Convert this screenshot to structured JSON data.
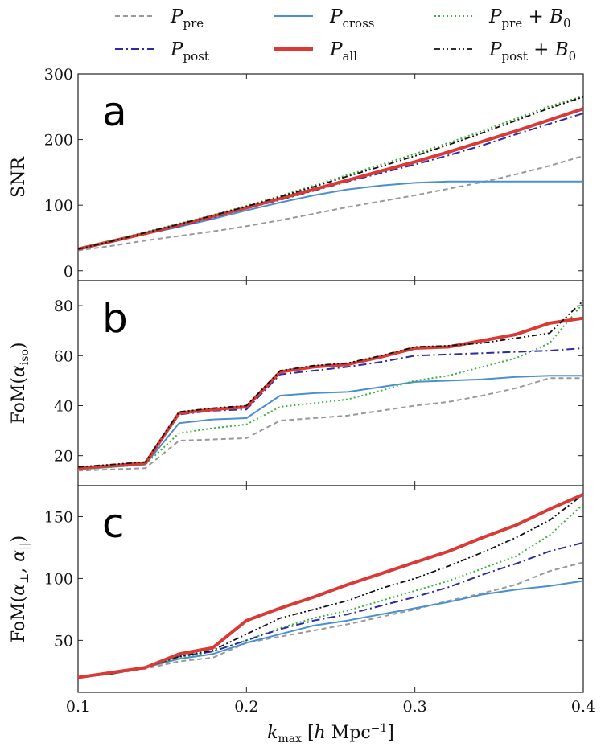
{
  "legend": [
    {
      "id": "pre",
      "main": "P",
      "sub": "pre",
      "suffix": ""
    },
    {
      "id": "cross",
      "main": "P",
      "sub": "cross",
      "suffix": ""
    },
    {
      "id": "preB0",
      "main": "P",
      "sub": "pre",
      "suffix": " + B",
      "suffix_sub": "0"
    },
    {
      "id": "post",
      "main": "P",
      "sub": "post",
      "suffix": ""
    },
    {
      "id": "all",
      "main": "P",
      "sub": "all",
      "suffix": ""
    },
    {
      "id": "postB0",
      "main": "P",
      "sub": "post",
      "suffix": " + B",
      "suffix_sub": "0"
    }
  ],
  "styles": {
    "pre": {
      "color": "#999999",
      "dash": "6,4",
      "width": 2
    },
    "post": {
      "color": "#2b2ba6",
      "dash": "10,4,2,4",
      "width": 2
    },
    "cross": {
      "color": "#4a8fd0",
      "dash": "",
      "width": 2
    },
    "all": {
      "color": "#d93a35",
      "dash": "",
      "width": 4
    },
    "preB0": {
      "color": "#3cb33c",
      "dash": "2,3",
      "width": 2
    },
    "postB0": {
      "color": "#111111",
      "dash": "7,3,2,3,2,3",
      "width": 1.8
    }
  },
  "xaxis": {
    "label_main": "k",
    "label_sub": "max",
    "label_rest": " [h Mpc",
    "label_sup": "−1",
    "label_end": "]",
    "ticks": [
      "0.1",
      "0.2",
      "0.3",
      "0.4"
    ],
    "range": [
      0.1,
      0.4
    ]
  },
  "chart_data": [
    {
      "type": "line",
      "panel": "a",
      "ylabel": "SNR",
      "ylim": [
        -15,
        300
      ],
      "yticks": [
        "0",
        "100",
        "200",
        "300"
      ],
      "x": [
        0.1,
        0.12,
        0.14,
        0.16,
        0.18,
        0.2,
        0.22,
        0.24,
        0.26,
        0.28,
        0.3,
        0.32,
        0.34,
        0.36,
        0.38,
        0.4
      ],
      "series": [
        {
          "name": "pre",
          "values": [
            31,
            38,
            46,
            53,
            60,
            68,
            77,
            87,
            97,
            106,
            115,
            125,
            135,
            147,
            160,
            175
          ]
        },
        {
          "name": "cross",
          "values": [
            32,
            44,
            56,
            67,
            79,
            92,
            104,
            115,
            124,
            130,
            134,
            136,
            136,
            136,
            136,
            136
          ]
        },
        {
          "name": "post",
          "values": [
            32,
            44,
            56,
            68,
            81,
            95,
            108,
            122,
            136,
            149,
            162,
            176,
            191,
            208,
            224,
            240
          ]
        },
        {
          "name": "all",
          "values": [
            33,
            45,
            57,
            70,
            83,
            96,
            110,
            124,
            138,
            152,
            166,
            181,
            197,
            213,
            230,
            247
          ]
        },
        {
          "name": "preB0",
          "values": [
            33,
            46,
            59,
            72,
            85,
            99,
            114,
            130,
            146,
            162,
            178,
            195,
            213,
            232,
            251,
            266
          ]
        },
        {
          "name": "postB0",
          "values": [
            33,
            45,
            58,
            71,
            84,
            98,
            113,
            128,
            144,
            159,
            175,
            192,
            210,
            229,
            248,
            265
          ]
        }
      ]
    },
    {
      "type": "line",
      "panel": "b",
      "ylabel": "FoM(α_iso)",
      "ylim": [
        8,
        90
      ],
      "yticks": [
        "20",
        "40",
        "60",
        "80"
      ],
      "x": [
        0.1,
        0.12,
        0.14,
        0.16,
        0.18,
        0.2,
        0.22,
        0.24,
        0.26,
        0.28,
        0.3,
        0.32,
        0.34,
        0.36,
        0.38,
        0.4
      ],
      "series": [
        {
          "name": "pre",
          "values": [
            14.0,
            14.5,
            15,
            26,
            26.5,
            27,
            34,
            35,
            36,
            38,
            40,
            41.5,
            44,
            47,
            51,
            51
          ]
        },
        {
          "name": "cross",
          "values": [
            14.5,
            15.5,
            16.5,
            33,
            34.5,
            35,
            44,
            45,
            45.5,
            47.5,
            49.5,
            50,
            50.5,
            51.5,
            52,
            52
          ]
        },
        {
          "name": "preB0",
          "values": [
            14.5,
            15.5,
            16.5,
            29,
            31,
            32.5,
            39.5,
            41,
            42.5,
            46,
            50,
            52,
            55.5,
            59,
            65,
            81
          ]
        },
        {
          "name": "post",
          "values": [
            15,
            16,
            17,
            36.5,
            38,
            38.5,
            52.5,
            54,
            55.5,
            57.5,
            60,
            60.5,
            61,
            61.5,
            62,
            63
          ]
        },
        {
          "name": "all",
          "values": [
            15,
            16,
            17,
            37,
            38.5,
            39.5,
            53.5,
            55.5,
            56.5,
            59.5,
            63,
            63.5,
            66,
            68.5,
            73,
            75
          ]
        },
        {
          "name": "postB0",
          "values": [
            15.5,
            16.5,
            17.5,
            37.5,
            39,
            40,
            54,
            56,
            57,
            60,
            63.5,
            64,
            65,
            67,
            69,
            82
          ]
        }
      ]
    },
    {
      "type": "line",
      "panel": "c",
      "ylabel": "FoM(α⊥, α||)",
      "ylim": [
        8,
        175
      ],
      "yticks": [
        "50",
        "100",
        "150"
      ],
      "x": [
        0.1,
        0.12,
        0.14,
        0.16,
        0.18,
        0.2,
        0.22,
        0.24,
        0.26,
        0.28,
        0.3,
        0.32,
        0.34,
        0.36,
        0.38,
        0.4
      ],
      "series": [
        {
          "name": "pre",
          "values": [
            20,
            23,
            27,
            33,
            36,
            48,
            53,
            58,
            63,
            69,
            75,
            82,
            88,
            95,
            106,
            113
          ]
        },
        {
          "name": "cross",
          "values": [
            20,
            23,
            28,
            35,
            39,
            48,
            55,
            62,
            66,
            71,
            76,
            81,
            87,
            91,
            94,
            98
          ]
        },
        {
          "name": "preB0",
          "values": [
            20,
            23,
            28,
            36,
            41,
            50,
            60,
            68,
            74,
            82,
            90,
            98,
            108,
            118,
            135,
            160
          ]
        },
        {
          "name": "post",
          "values": [
            20,
            23,
            28,
            37,
            41,
            50,
            59,
            66,
            71,
            78,
            85,
            93,
            103,
            112,
            122,
            129
          ]
        },
        {
          "name": "postB0",
          "values": [
            20,
            23,
            28,
            37,
            42,
            55,
            68,
            75,
            82,
            92,
            100,
            110,
            121,
            133,
            147,
            168
          ]
        },
        {
          "name": "all",
          "values": [
            20,
            24,
            28,
            39,
            44,
            66,
            76,
            85,
            95,
            104,
            113,
            122,
            133,
            143,
            156,
            168
          ]
        }
      ]
    }
  ]
}
